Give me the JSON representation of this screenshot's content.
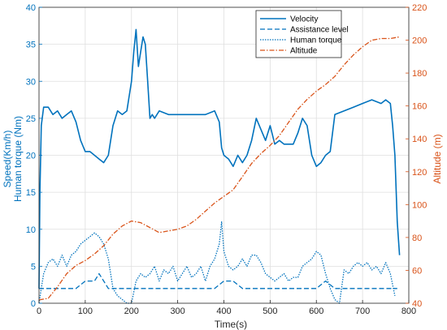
{
  "chart_data": {
    "type": "line",
    "xlabel": "Time(s)",
    "ylabel_left": [
      "Speed(Km/h)",
      "Human torque (Nm)"
    ],
    "ylabel_right": "Altitude (m)",
    "xlim": [
      0,
      800
    ],
    "ylim_left": [
      0,
      40
    ],
    "ylim_right": [
      40,
      220
    ],
    "x_ticks": [
      "0",
      "100",
      "200",
      "300",
      "400",
      "500",
      "600",
      "700",
      "800"
    ],
    "y_left_ticks": [
      "0",
      "5",
      "10",
      "15",
      "20",
      "25",
      "30",
      "35",
      "40"
    ],
    "y_right_ticks": [
      "40",
      "60",
      "80",
      "100",
      "120",
      "140",
      "160",
      "180",
      "200",
      "220"
    ],
    "grid": true,
    "legend_position": "top-right",
    "colors": {
      "left": "#0072BD",
      "right": "#D95319"
    },
    "series": [
      {
        "name": "Velocity",
        "axis": "left",
        "style": "solid",
        "x": [
          0,
          2,
          5,
          10,
          20,
          30,
          40,
          50,
          60,
          70,
          80,
          90,
          100,
          110,
          120,
          130,
          140,
          150,
          160,
          170,
          180,
          190,
          200,
          205,
          210,
          215,
          220,
          225,
          230,
          235,
          240,
          245,
          250,
          260,
          280,
          300,
          320,
          340,
          360,
          380,
          390,
          395,
          400,
          410,
          420,
          430,
          440,
          450,
          460,
          470,
          480,
          490,
          500,
          510,
          520,
          530,
          540,
          550,
          560,
          570,
          580,
          590,
          600,
          610,
          620,
          630,
          640,
          660,
          680,
          700,
          720,
          740,
          750,
          760,
          765,
          770,
          775,
          780
        ],
        "y": [
          2,
          15,
          24,
          26.5,
          26.5,
          25.5,
          26,
          25,
          25.5,
          26,
          24.5,
          22,
          20.5,
          20.5,
          20,
          19.5,
          19,
          20,
          24,
          26,
          25.5,
          26,
          30,
          34,
          37,
          32,
          34,
          36,
          35,
          30,
          25,
          25.5,
          25,
          26,
          25.5,
          25.5,
          25.5,
          25.5,
          25.5,
          26,
          24.5,
          21,
          20,
          19.5,
          18.5,
          20,
          19,
          20,
          22,
          25,
          23.5,
          22,
          24,
          21.5,
          22,
          21.5,
          21.5,
          21.5,
          23,
          25,
          24,
          20,
          18.5,
          19,
          20,
          20.5,
          25.5,
          26,
          26.5,
          27,
          27.5,
          27,
          27.5,
          27,
          24,
          20,
          11,
          6.5
        ]
      },
      {
        "name": "Assistance level",
        "axis": "left",
        "style": "dashed",
        "x": [
          0,
          10,
          20,
          40,
          60,
          80,
          100,
          120,
          130,
          140,
          150,
          160,
          180,
          200,
          220,
          240,
          260,
          280,
          300,
          320,
          340,
          360,
          380,
          400,
          420,
          440,
          460,
          480,
          500,
          520,
          540,
          560,
          580,
          600,
          620,
          640,
          660,
          680,
          700,
          720,
          740,
          760,
          775
        ],
        "y": [
          2,
          2,
          2,
          2,
          2,
          2,
          3,
          3,
          4,
          3,
          2,
          2,
          2,
          2,
          2,
          2,
          2,
          2,
          2,
          2,
          2,
          2,
          2,
          3,
          3,
          2,
          2,
          2,
          2,
          2,
          2,
          2,
          2,
          2,
          3,
          2,
          2,
          2,
          2,
          2,
          2,
          2,
          2
        ]
      },
      {
        "name": "Human torque",
        "axis": "left",
        "style": "dotted",
        "x": [
          0,
          5,
          10,
          20,
          30,
          40,
          50,
          60,
          70,
          80,
          90,
          100,
          110,
          120,
          130,
          140,
          150,
          160,
          170,
          180,
          190,
          200,
          210,
          220,
          230,
          240,
          250,
          260,
          270,
          280,
          290,
          300,
          310,
          320,
          330,
          340,
          350,
          360,
          370,
          380,
          390,
          395,
          400,
          410,
          420,
          430,
          440,
          450,
          460,
          470,
          480,
          490,
          500,
          510,
          520,
          530,
          540,
          550,
          560,
          570,
          580,
          590,
          600,
          610,
          620,
          630,
          640,
          650,
          660,
          670,
          680,
          690,
          700,
          710,
          720,
          730,
          740,
          750,
          760,
          770
        ],
        "y": [
          0,
          2,
          4,
          5.5,
          6,
          5,
          6.5,
          5,
          6.5,
          7,
          8,
          8.5,
          9,
          9.5,
          9,
          8,
          6,
          2,
          1,
          0.5,
          0,
          0,
          3,
          4,
          3.5,
          4,
          5,
          3,
          4.5,
          4,
          5,
          3,
          4,
          5,
          3.5,
          4,
          5,
          3,
          5,
          6,
          8,
          11,
          7,
          5,
          4.5,
          5,
          6,
          5,
          6.5,
          6.5,
          5.5,
          4,
          3.5,
          3,
          3.5,
          4,
          3,
          3.5,
          3.5,
          5,
          5.5,
          6,
          7,
          6.5,
          4,
          2,
          0.5,
          0,
          4.5,
          4,
          5,
          5.5,
          5,
          5.5,
          4.5,
          5,
          4,
          5.5,
          4,
          1
        ]
      },
      {
        "name": "Altitude",
        "axis": "right",
        "style": "dashdot",
        "x": [
          0,
          20,
          40,
          60,
          80,
          100,
          120,
          140,
          160,
          180,
          200,
          220,
          240,
          260,
          280,
          300,
          320,
          340,
          360,
          380,
          400,
          420,
          440,
          460,
          480,
          500,
          520,
          540,
          560,
          580,
          600,
          620,
          640,
          660,
          680,
          700,
          720,
          740,
          760,
          780
        ],
        "y": [
          42,
          43,
          50,
          58,
          63,
          66,
          70,
          75,
          82,
          87,
          90,
          89,
          86,
          83,
          84,
          85,
          87,
          91,
          96,
          101,
          105,
          109,
          117,
          125,
          131,
          136,
          142,
          150,
          158,
          164,
          169,
          173,
          178,
          185,
          191,
          196,
          200,
          201,
          201,
          202
        ]
      }
    ]
  }
}
